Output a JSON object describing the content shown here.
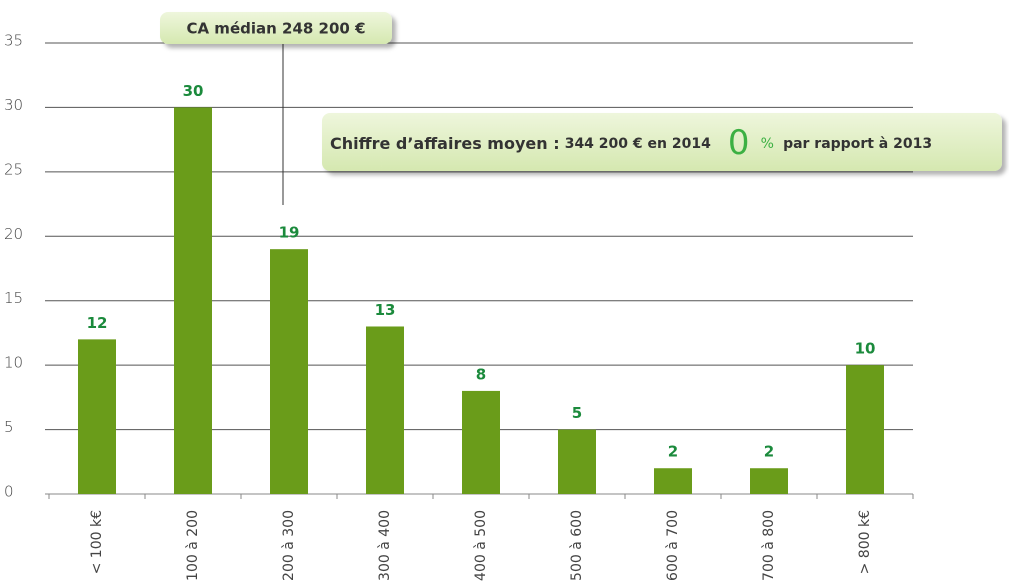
{
  "chart_data": {
    "type": "bar",
    "categories": [
      "< 100 k€",
      "100 à 200",
      "200 à 300",
      "300 à 400",
      "400 à 500",
      "500 à 600",
      "600 à 700",
      "700 à 800",
      "> 800 k€"
    ],
    "values": [
      12,
      30,
      19,
      13,
      8,
      5,
      2,
      2,
      10
    ],
    "color": "#6a9c1a",
    "ylim": [
      0,
      35
    ],
    "yticks": [
      0,
      5,
      10,
      15,
      20,
      25,
      30,
      35
    ],
    "grid": true,
    "annotations": {
      "median": "CA médian 248 200 €",
      "mean_label": "Chiffre d’affaires moyen :",
      "mean_value": "344 200 € en 2014",
      "change": "0",
      "change_unit": "%",
      "change_ref": "par rapport à 2013"
    }
  }
}
